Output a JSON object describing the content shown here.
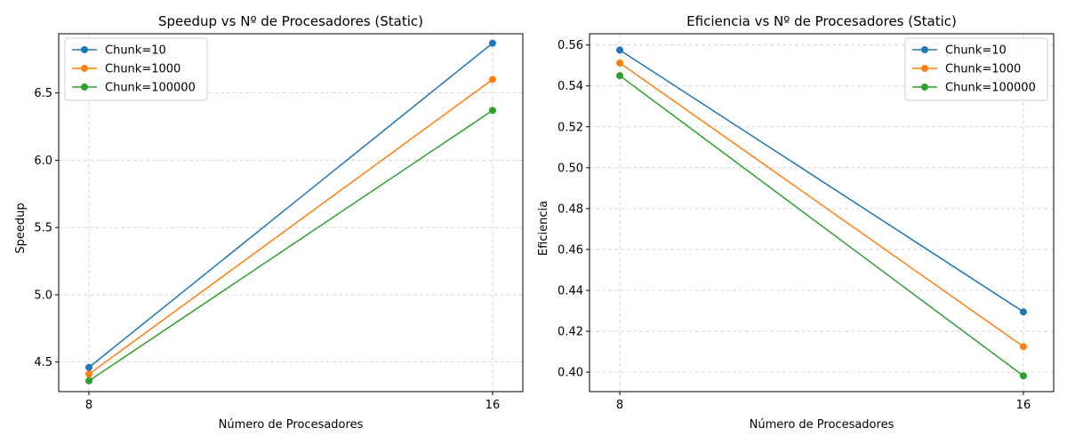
{
  "chart_data": [
    {
      "type": "line",
      "title": "Speedup vs Nº de Procesadores (Static)",
      "xlabel": "Número de Procesadores",
      "ylabel": "Speedup",
      "x": [
        8,
        16
      ],
      "x_ticks": [
        "8",
        "16"
      ],
      "xlim": [
        7.4,
        16.6
      ],
      "ylim": [
        4.28,
        6.94
      ],
      "y_ticks": [
        4.5,
        5.0,
        5.5,
        6.0,
        6.5
      ],
      "y_tick_labels": [
        "4.5",
        "5.0",
        "5.5",
        "6.0",
        "6.5"
      ],
      "grid": true,
      "legend_position": "upper-left",
      "series": [
        {
          "name": "Chunk=10",
          "values": [
            4.46,
            6.87
          ],
          "color": "#1f77b4"
        },
        {
          "name": "Chunk=1000",
          "values": [
            4.41,
            6.6
          ],
          "color": "#ff7f0e"
        },
        {
          "name": "Chunk=100000",
          "values": [
            4.36,
            6.37
          ],
          "color": "#2ca02c"
        }
      ]
    },
    {
      "type": "line",
      "title": "Eficiencia vs Nº de Procesadores (Static)",
      "xlabel": "Número de Procesadores",
      "ylabel": "Eficiencia",
      "x": [
        8,
        16
      ],
      "x_ticks": [
        "8",
        "16"
      ],
      "xlim": [
        7.4,
        16.6
      ],
      "ylim": [
        0.3905,
        0.5655
      ],
      "y_ticks": [
        0.4,
        0.42,
        0.44,
        0.46,
        0.48,
        0.5,
        0.52,
        0.54,
        0.56
      ],
      "y_tick_labels": [
        "0.40",
        "0.42",
        "0.44",
        "0.46",
        "0.48",
        "0.50",
        "0.52",
        "0.54",
        "0.56"
      ],
      "grid": true,
      "legend_position": "upper-right",
      "series": [
        {
          "name": "Chunk=10",
          "values": [
            0.5575,
            0.4295
          ],
          "color": "#1f77b4"
        },
        {
          "name": "Chunk=1000",
          "values": [
            0.5512,
            0.4125
          ],
          "color": "#ff7f0e"
        },
        {
          "name": "Chunk=100000",
          "values": [
            0.545,
            0.3982
          ],
          "color": "#2ca02c"
        }
      ]
    }
  ]
}
